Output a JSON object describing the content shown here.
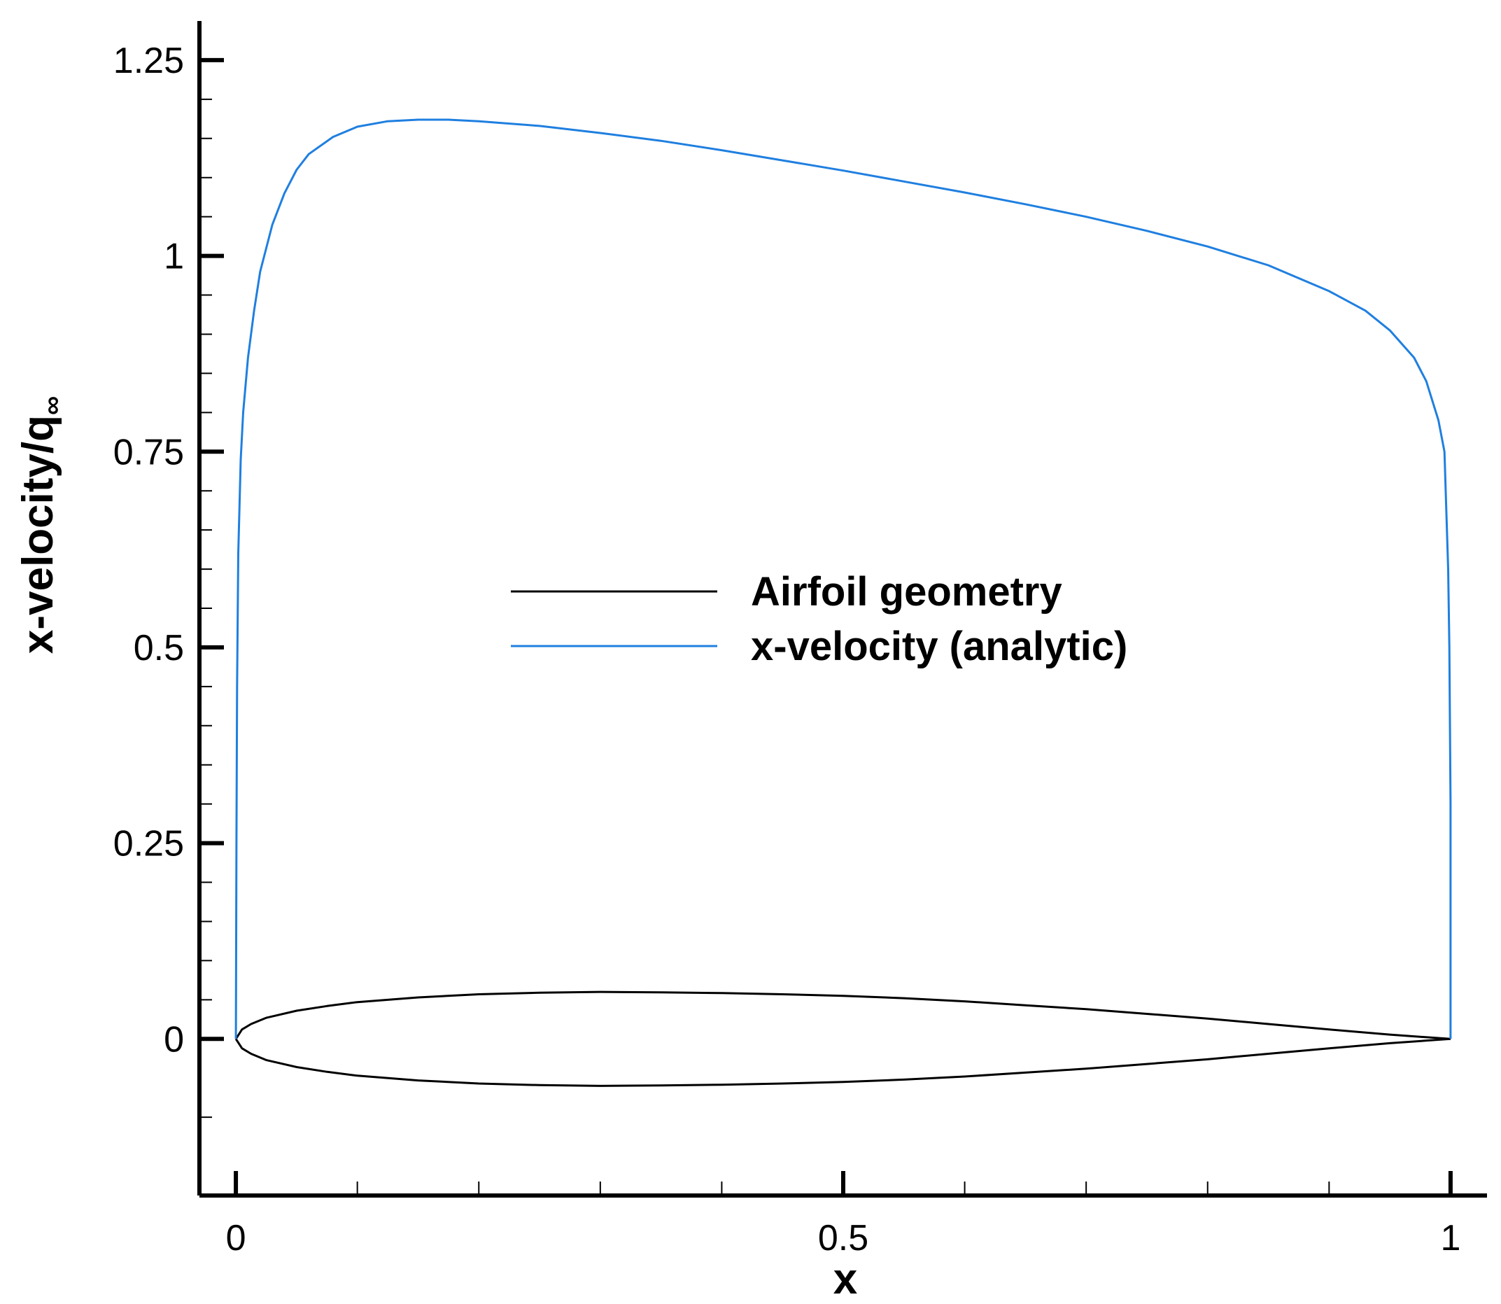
{
  "chart_data": {
    "type": "line",
    "xlabel": "x",
    "ylabel_main": "x-velocity/q",
    "ylabel_sub": "∞",
    "xlim": [
      -0.03,
      1.03
    ],
    "ylim": [
      -0.2,
      1.3
    ],
    "x_ticks": [
      {
        "value": 0,
        "label": "0"
      },
      {
        "value": 0.5,
        "label": "0.5"
      },
      {
        "value": 1,
        "label": "1"
      }
    ],
    "x_minor_ticks": [
      0.1,
      0.2,
      0.3,
      0.4,
      0.6,
      0.7,
      0.8,
      0.9
    ],
    "y_ticks": [
      {
        "value": 0,
        "label": "0"
      },
      {
        "value": 0.25,
        "label": "0.25"
      },
      {
        "value": 0.5,
        "label": "0.5"
      },
      {
        "value": 0.75,
        "label": "0.75"
      },
      {
        "value": 1,
        "label": "1"
      },
      {
        "value": 1.25,
        "label": "1.25"
      }
    ],
    "y_minor_ticks": [
      -0.1,
      0.05,
      0.1,
      0.15,
      0.2,
      0.3,
      0.35,
      0.4,
      0.45,
      0.55,
      0.6,
      0.65,
      0.7,
      0.8,
      0.85,
      0.9,
      0.95,
      1.05,
      1.1,
      1.15,
      1.2
    ],
    "legend_position": "center",
    "series": [
      {
        "name": "Airfoil geometry",
        "color": "#000000",
        "segments": [
          [
            [
              0,
              0
            ],
            [
              0.005,
              0.012
            ],
            [
              0.0125,
              0.019
            ],
            [
              0.025,
              0.027
            ],
            [
              0.05,
              0.036
            ],
            [
              0.075,
              0.042
            ],
            [
              0.1,
              0.047
            ],
            [
              0.15,
              0.053
            ],
            [
              0.2,
              0.057
            ],
            [
              0.25,
              0.059
            ],
            [
              0.3,
              0.06
            ],
            [
              0.35,
              0.0595
            ],
            [
              0.4,
              0.0585
            ],
            [
              0.45,
              0.057
            ],
            [
              0.5,
              0.055
            ],
            [
              0.55,
              0.052
            ],
            [
              0.6,
              0.048
            ],
            [
              0.65,
              0.043
            ],
            [
              0.7,
              0.038
            ],
            [
              0.75,
              0.032
            ],
            [
              0.8,
              0.026
            ],
            [
              0.85,
              0.019
            ],
            [
              0.9,
              0.012
            ],
            [
              0.95,
              0.0055
            ],
            [
              1.0,
              0
            ]
          ],
          [
            [
              0,
              0
            ],
            [
              0.005,
              -0.012
            ],
            [
              0.0125,
              -0.019
            ],
            [
              0.025,
              -0.027
            ],
            [
              0.05,
              -0.036
            ],
            [
              0.075,
              -0.042
            ],
            [
              0.1,
              -0.047
            ],
            [
              0.15,
              -0.053
            ],
            [
              0.2,
              -0.057
            ],
            [
              0.25,
              -0.059
            ],
            [
              0.3,
              -0.06
            ],
            [
              0.35,
              -0.0595
            ],
            [
              0.4,
              -0.0585
            ],
            [
              0.45,
              -0.057
            ],
            [
              0.5,
              -0.055
            ],
            [
              0.55,
              -0.052
            ],
            [
              0.6,
              -0.048
            ],
            [
              0.65,
              -0.043
            ],
            [
              0.7,
              -0.038
            ],
            [
              0.75,
              -0.032
            ],
            [
              0.8,
              -0.026
            ],
            [
              0.85,
              -0.019
            ],
            [
              0.9,
              -0.012
            ],
            [
              0.95,
              -0.0055
            ],
            [
              1.0,
              0
            ]
          ]
        ]
      },
      {
        "name": "x-velocity (analytic)",
        "color": "#1f7fe0",
        "segments": [
          [
            [
              0,
              0
            ],
            [
              0.0005,
              0.25
            ],
            [
              0.001,
              0.45
            ],
            [
              0.002,
              0.62
            ],
            [
              0.004,
              0.74
            ],
            [
              0.006,
              0.8
            ],
            [
              0.01,
              0.87
            ],
            [
              0.015,
              0.93
            ],
            [
              0.02,
              0.98
            ],
            [
              0.03,
              1.04
            ],
            [
              0.04,
              1.08
            ],
            [
              0.05,
              1.11
            ],
            [
              0.06,
              1.13
            ],
            [
              0.08,
              1.152
            ],
            [
              0.1,
              1.165
            ],
            [
              0.125,
              1.172
            ],
            [
              0.15,
              1.174
            ],
            [
              0.175,
              1.174
            ],
            [
              0.2,
              1.172
            ],
            [
              0.25,
              1.166
            ],
            [
              0.3,
              1.157
            ],
            [
              0.35,
              1.147
            ],
            [
              0.4,
              1.135
            ],
            [
              0.45,
              1.122
            ],
            [
              0.5,
              1.109
            ],
            [
              0.55,
              1.095
            ],
            [
              0.6,
              1.081
            ],
            [
              0.65,
              1.066
            ],
            [
              0.7,
              1.05
            ],
            [
              0.75,
              1.032
            ],
            [
              0.8,
              1.012
            ],
            [
              0.85,
              0.988
            ],
            [
              0.9,
              0.955
            ],
            [
              0.93,
              0.93
            ],
            [
              0.95,
              0.905
            ],
            [
              0.97,
              0.87
            ],
            [
              0.98,
              0.84
            ],
            [
              0.99,
              0.79
            ],
            [
              0.995,
              0.75
            ],
            [
              0.998,
              0.6
            ],
            [
              0.999,
              0.5
            ],
            [
              1.0,
              0.3
            ],
            [
              1.0,
              0
            ]
          ]
        ]
      }
    ]
  }
}
